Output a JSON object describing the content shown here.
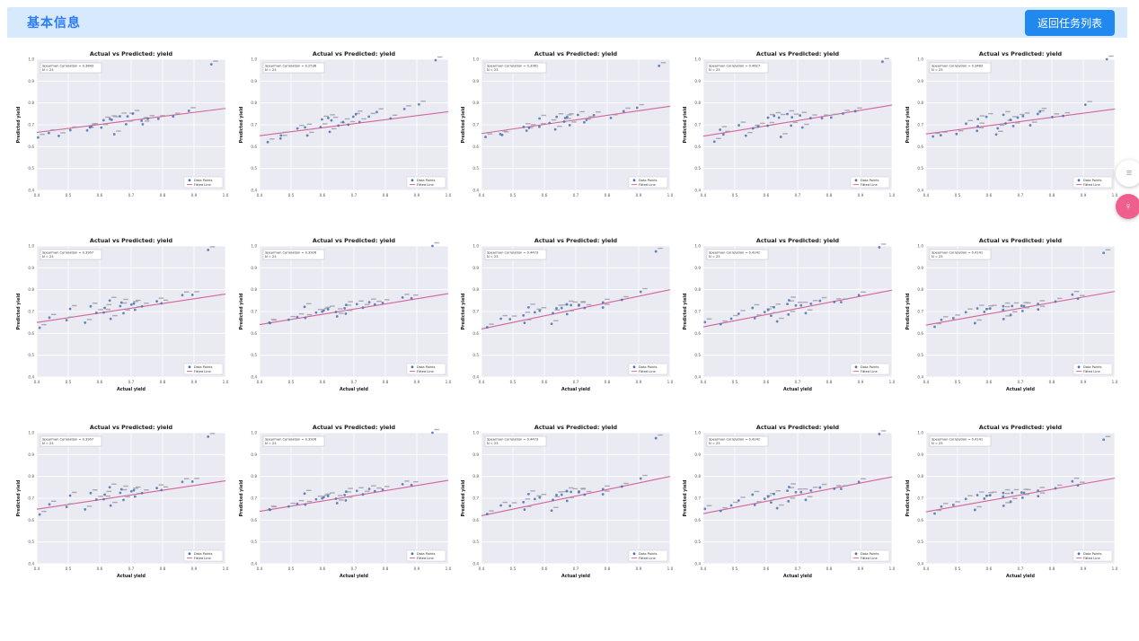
{
  "header": {
    "title": "基本信息",
    "back_button_label": "返回任务列表"
  },
  "floating_widgets": {
    "top_button_glyph": "≡",
    "bottom_button_glyph": "♀"
  },
  "chart_data": {
    "type": "scatter",
    "title": "Actual vs Predicted: yield",
    "xlabel": "Actual yield",
    "ylabel": "Predicted yield",
    "xlim": [
      0.4,
      1.0
    ],
    "ylim": [
      0.4,
      1.0
    ],
    "xticks": [
      0.4,
      0.5,
      0.6,
      0.7,
      0.8,
      0.9,
      1.0
    ],
    "yticks": [
      0.4,
      0.5,
      0.6,
      0.7,
      0.8,
      0.9,
      1.0
    ],
    "grid": true,
    "legend_position": "lower right",
    "legend": [
      "Data Points",
      "Fitted Line"
    ],
    "n_label": "N = 23",
    "n": 23,
    "annotation_prefix": "Spearman Correlation = ",
    "colors": {
      "point": "#4c72b0",
      "fitted_line": "#d4649b",
      "plot_bg": "#eaeaf2",
      "gridline": "#ffffff",
      "tick_text": "#555555",
      "annotation_border": "#bbbbbb"
    },
    "base_points": [
      [
        0.42,
        0.64
      ],
      [
        0.45,
        0.655
      ],
      [
        0.48,
        0.66
      ],
      [
        0.52,
        0.69
      ],
      [
        0.55,
        0.66
      ],
      [
        0.56,
        0.705
      ],
      [
        0.58,
        0.68
      ],
      [
        0.6,
        0.715
      ],
      [
        0.62,
        0.7
      ],
      [
        0.63,
        0.73
      ],
      [
        0.64,
        0.66
      ],
      [
        0.65,
        0.715
      ],
      [
        0.66,
        0.73
      ],
      [
        0.68,
        0.7
      ],
      [
        0.69,
        0.72
      ],
      [
        0.7,
        0.735
      ],
      [
        0.72,
        0.71
      ],
      [
        0.74,
        0.73
      ],
      [
        0.77,
        0.74
      ],
      [
        0.8,
        0.745
      ],
      [
        0.85,
        0.76
      ],
      [
        0.9,
        0.78
      ],
      [
        0.96,
        0.99
      ]
    ],
    "plots": [
      {
        "spearman": "0.3843",
        "fit_line_y": [
          0.665,
          0.775
        ],
        "show_xlabel": false,
        "seed": 1
      },
      {
        "spearman": "0.2538",
        "fit_line_y": [
          0.65,
          0.76
        ],
        "show_xlabel": false,
        "seed": 2
      },
      {
        "spearman": "0.3961",
        "fit_line_y": [
          0.66,
          0.785
        ],
        "show_xlabel": false,
        "seed": 3
      },
      {
        "spearman": "0.4627",
        "fit_line_y": [
          0.648,
          0.79
        ],
        "show_xlabel": false,
        "seed": 4
      },
      {
        "spearman": "0.3483",
        "fit_line_y": [
          0.658,
          0.772
        ],
        "show_xlabel": false,
        "seed": 5
      },
      {
        "spearman": "0.3907",
        "fit_line_y": [
          0.65,
          0.78
        ],
        "show_xlabel": true,
        "seed": 6
      },
      {
        "spearman": "0.3926",
        "fit_line_y": [
          0.64,
          0.782
        ],
        "show_xlabel": true,
        "seed": 7
      },
      {
        "spearman": "0.4473",
        "fit_line_y": [
          0.62,
          0.8
        ],
        "show_xlabel": true,
        "seed": 8
      },
      {
        "spearman": "0.4242",
        "fit_line_y": [
          0.63,
          0.798
        ],
        "show_xlabel": true,
        "seed": 9
      },
      {
        "spearman": "0.4141",
        "fit_line_y": [
          0.638,
          0.792
        ],
        "show_xlabel": true,
        "seed": 10
      },
      {
        "spearman": "0.3907",
        "fit_line_y": [
          0.65,
          0.78
        ],
        "show_xlabel": true,
        "seed": 6
      },
      {
        "spearman": "0.3926",
        "fit_line_y": [
          0.64,
          0.782
        ],
        "show_xlabel": true,
        "seed": 7
      },
      {
        "spearman": "0.4473",
        "fit_line_y": [
          0.62,
          0.8
        ],
        "show_xlabel": true,
        "seed": 8
      },
      {
        "spearman": "0.4242",
        "fit_line_y": [
          0.63,
          0.798
        ],
        "show_xlabel": true,
        "seed": 9
      },
      {
        "spearman": "0.4141",
        "fit_line_y": [
          0.638,
          0.792
        ],
        "show_xlabel": true,
        "seed": 10
      }
    ]
  }
}
